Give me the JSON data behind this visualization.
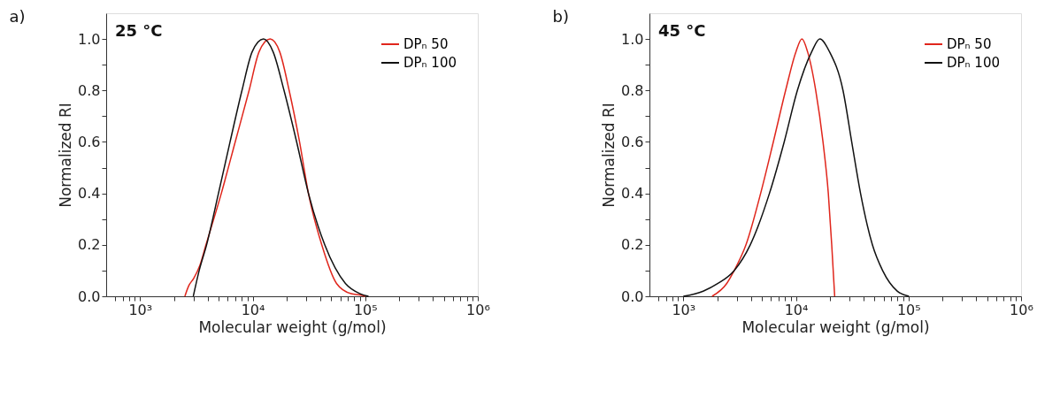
{
  "chart_data": [
    {
      "type": "line",
      "title": "a)",
      "xlabel": "Molecular weight (g/mol)",
      "ylabel": "Normalized RI",
      "annotations": [
        "25 °C"
      ],
      "log": "x",
      "legend": "top right",
      "grid": false,
      "marker": "none",
      "line_style": "solid",
      "xlim": [
        500,
        1000000
      ],
      "ylim": [
        0,
        1.1
      ],
      "xticks": [
        {
          "value": 600,
          "label": null
        },
        {
          "value": 700,
          "label": null
        },
        {
          "value": 800,
          "label": null
        },
        {
          "value": 900,
          "label": null
        },
        {
          "value": 1000,
          "label": "10³"
        },
        {
          "value": 2000,
          "label": null
        },
        {
          "value": 3000,
          "label": null
        },
        {
          "value": 4000,
          "label": null
        },
        {
          "value": 5000,
          "label": null
        },
        {
          "value": 6000,
          "label": null
        },
        {
          "value": 7000,
          "label": null
        },
        {
          "value": 8000,
          "label": null
        },
        {
          "value": 9000,
          "label": null
        },
        {
          "value": 10000,
          "label": "10⁴"
        },
        {
          "value": 20000,
          "label": null
        },
        {
          "value": 30000,
          "label": null
        },
        {
          "value": 40000,
          "label": null
        },
        {
          "value": 50000,
          "label": null
        },
        {
          "value": 60000,
          "label": null
        },
        {
          "value": 70000,
          "label": null
        },
        {
          "value": 80000,
          "label": null
        },
        {
          "value": 90000,
          "label": null
        },
        {
          "value": 100000,
          "label": "10⁵"
        },
        {
          "value": 200000,
          "label": null
        },
        {
          "value": 300000,
          "label": null
        },
        {
          "value": 400000,
          "label": null
        },
        {
          "value": 500000,
          "label": null
        },
        {
          "value": 600000,
          "label": null
        },
        {
          "value": 700000,
          "label": null
        },
        {
          "value": 800000,
          "label": null
        },
        {
          "value": 900000,
          "label": null
        },
        {
          "value": 1000000,
          "label": "10⁶"
        }
      ],
      "yticks": [
        {
          "value": 0,
          "label": "0.0"
        },
        {
          "value": 0.1,
          "label": null
        },
        {
          "value": 0.2,
          "label": "0.2"
        },
        {
          "value": 0.3,
          "label": null
        },
        {
          "value": 0.4,
          "label": "0.4"
        },
        {
          "value": 0.5,
          "label": null
        },
        {
          "value": 0.6,
          "label": "0.6"
        },
        {
          "value": 0.7,
          "label": null
        },
        {
          "value": 0.8,
          "label": "0.8"
        },
        {
          "value": 0.9,
          "label": null
        },
        {
          "value": 1.0,
          "label": "1.0"
        }
      ],
      "series": [
        {
          "name": "DPₙ 50",
          "color": "#e0261c",
          "x": [
            2500,
            2700,
            3000,
            3400,
            3850,
            5270,
            7000,
            9300,
            11400,
            14300,
            17400,
            21100,
            26100,
            31300,
            41100,
            55600,
            75000,
            90000,
            100000
          ],
          "values": [
            0,
            0.04,
            0.07,
            0.12,
            0.2,
            0.4,
            0.6,
            0.8,
            0.95,
            1.0,
            0.95,
            0.8,
            0.6,
            0.4,
            0.2,
            0.05,
            0.01,
            0.005,
            0
          ]
        },
        {
          "name": "DPₙ 100",
          "color": "#111111",
          "x": [
            2970,
            3350,
            3900,
            4970,
            6300,
            8040,
            9900,
            12500,
            15200,
            19000,
            24600,
            31300,
            43700,
            66700,
            90000,
            107000
          ],
          "values": [
            0,
            0.1,
            0.2,
            0.4,
            0.6,
            0.8,
            0.95,
            1.0,
            0.95,
            0.8,
            0.6,
            0.4,
            0.2,
            0.05,
            0.01,
            0
          ]
        }
      ]
    },
    {
      "type": "line",
      "title": "b)",
      "xlabel": "Molecular weight (g/mol)",
      "ylabel": "Normalized RI",
      "annotations": [
        "45 °C"
      ],
      "log": "x",
      "legend": "top right",
      "grid": false,
      "marker": "none",
      "line_style": "solid",
      "xlim": [
        500,
        1000000
      ],
      "ylim": [
        0,
        1.1
      ],
      "xticks": [
        {
          "value": 600,
          "label": null
        },
        {
          "value": 700,
          "label": null
        },
        {
          "value": 800,
          "label": null
        },
        {
          "value": 900,
          "label": null
        },
        {
          "value": 1000,
          "label": "10³"
        },
        {
          "value": 2000,
          "label": null
        },
        {
          "value": 3000,
          "label": null
        },
        {
          "value": 4000,
          "label": null
        },
        {
          "value": 5000,
          "label": null
        },
        {
          "value": 6000,
          "label": null
        },
        {
          "value": 7000,
          "label": null
        },
        {
          "value": 8000,
          "label": null
        },
        {
          "value": 9000,
          "label": null
        },
        {
          "value": 10000,
          "label": "10⁴"
        },
        {
          "value": 20000,
          "label": null
        },
        {
          "value": 30000,
          "label": null
        },
        {
          "value": 40000,
          "label": null
        },
        {
          "value": 50000,
          "label": null
        },
        {
          "value": 60000,
          "label": null
        },
        {
          "value": 70000,
          "label": null
        },
        {
          "value": 80000,
          "label": null
        },
        {
          "value": 90000,
          "label": null
        },
        {
          "value": 100000,
          "label": "10⁵"
        },
        {
          "value": 200000,
          "label": null
        },
        {
          "value": 300000,
          "label": null
        },
        {
          "value": 400000,
          "label": null
        },
        {
          "value": 500000,
          "label": null
        },
        {
          "value": 600000,
          "label": null
        },
        {
          "value": 700000,
          "label": null
        },
        {
          "value": 800000,
          "label": null
        },
        {
          "value": 900000,
          "label": null
        },
        {
          "value": 1000000,
          "label": "10⁶"
        }
      ],
      "yticks": [
        {
          "value": 0,
          "label": "0.0"
        },
        {
          "value": 0.1,
          "label": null
        },
        {
          "value": 0.2,
          "label": "0.2"
        },
        {
          "value": 0.3,
          "label": null
        },
        {
          "value": 0.4,
          "label": "0.4"
        },
        {
          "value": 0.5,
          "label": null
        },
        {
          "value": 0.6,
          "label": "0.6"
        },
        {
          "value": 0.7,
          "label": null
        },
        {
          "value": 0.8,
          "label": "0.8"
        },
        {
          "value": 0.9,
          "label": null
        },
        {
          "value": 1.0,
          "label": "1.0"
        }
      ],
      "series": [
        {
          "name": "DPₙ 50",
          "color": "#e0261c",
          "x": [
            1800,
            2430,
            2830,
            3600,
            4860,
            6300,
            8100,
            10000,
            11300,
            12700,
            15000,
            17400,
            19400,
            20800,
            22100
          ],
          "values": [
            0,
            0.05,
            0.1,
            0.2,
            0.4,
            0.6,
            0.8,
            0.95,
            1.0,
            0.95,
            0.8,
            0.6,
            0.4,
            0.2,
            0
          ]
        },
        {
          "name": "DPₙ 100",
          "color": "#111111",
          "x": [
            1000,
            1500,
            2030,
            2830,
            3930,
            5820,
            7870,
            10300,
            13800,
            16300,
            19900,
            26200,
            31300,
            37500,
            47800,
            58900,
            79400,
            101000
          ],
          "values": [
            0,
            0.02,
            0.05,
            0.1,
            0.2,
            0.4,
            0.6,
            0.8,
            0.95,
            1.0,
            0.95,
            0.8,
            0.6,
            0.4,
            0.2,
            0.1,
            0.02,
            0
          ]
        }
      ]
    }
  ]
}
